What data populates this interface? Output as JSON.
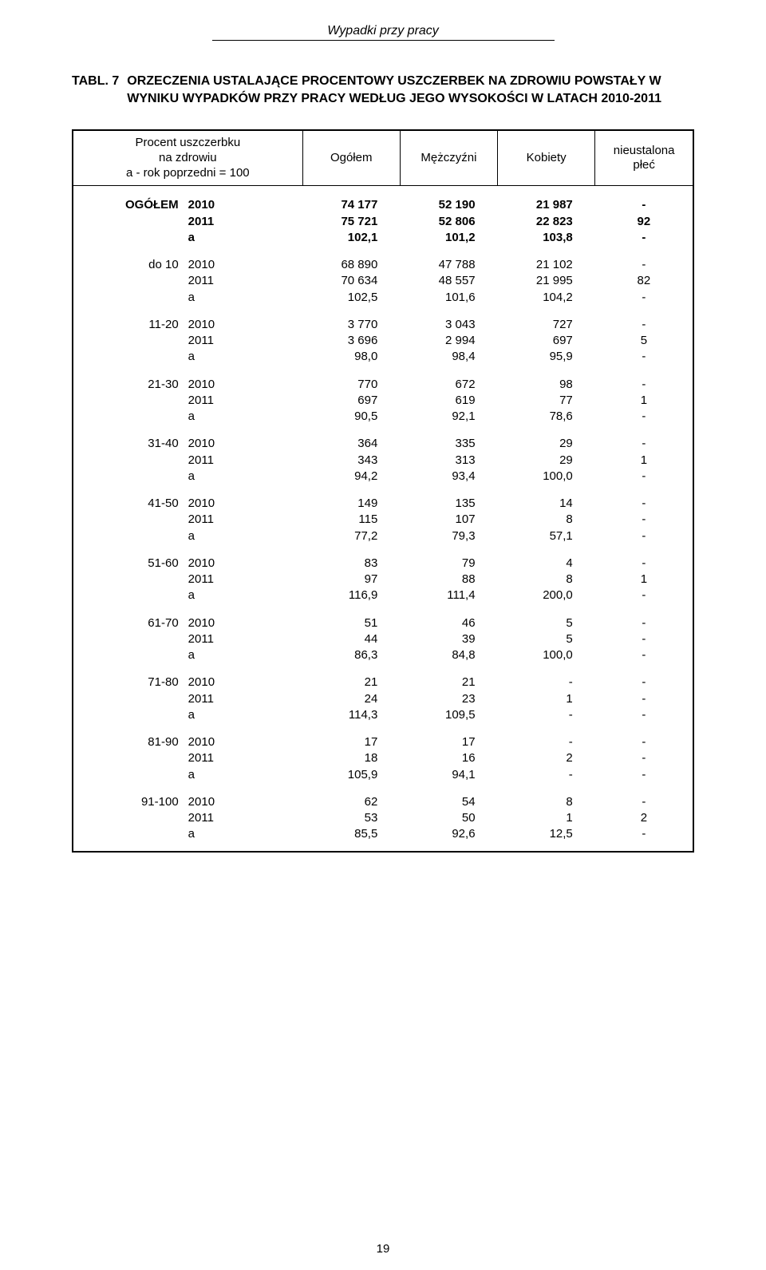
{
  "header_text": "Wypadki przy pracy",
  "title_label": "TABL. 7",
  "title_text": "ORZECZENIA USTALAJĄCE PROCENTOWY USZCZERBEK NA ZDROWIU POWSTAŁY W WYNIKU WYPADKÓW PRZY PRACY WEDŁUG JEGO WYSOKOŚCI W LATACH 2010-2011",
  "columns": {
    "group_line1": "Procent uszczerbku",
    "group_line2": "na zdrowiu",
    "group_line3": "a - rok poprzedni = 100",
    "total": "Ogółem",
    "men": "Mężczyźni",
    "women": "Kobiety",
    "unknown_line1": "nieustalona",
    "unknown_line2": "płeć"
  },
  "groups": [
    {
      "label": "OGÓŁEM",
      "bold": true,
      "rows": [
        {
          "y": "2010",
          "c": [
            "74 177",
            "52 190",
            "21 987",
            "-"
          ]
        },
        {
          "y": "2011",
          "c": [
            "75 721",
            "52 806",
            "22 823",
            "92"
          ]
        },
        {
          "y": "a",
          "c": [
            "102,1",
            "101,2",
            "103,8",
            "-"
          ]
        }
      ]
    },
    {
      "label": "do 10",
      "rows": [
        {
          "y": "2010",
          "c": [
            "68 890",
            "47 788",
            "21 102",
            "-"
          ]
        },
        {
          "y": "2011",
          "c": [
            "70 634",
            "48 557",
            "21 995",
            "82"
          ]
        },
        {
          "y": "a",
          "c": [
            "102,5",
            "101,6",
            "104,2",
            "-"
          ]
        }
      ]
    },
    {
      "label": "11-20",
      "rows": [
        {
          "y": "2010",
          "c": [
            "3 770",
            "3 043",
            "727",
            "-"
          ]
        },
        {
          "y": "2011",
          "c": [
            "3 696",
            "2 994",
            "697",
            "5"
          ]
        },
        {
          "y": "a",
          "c": [
            "98,0",
            "98,4",
            "95,9",
            "-"
          ]
        }
      ]
    },
    {
      "label": "21-30",
      "rows": [
        {
          "y": "2010",
          "c": [
            "770",
            "672",
            "98",
            "-"
          ]
        },
        {
          "y": "2011",
          "c": [
            "697",
            "619",
            "77",
            "1"
          ]
        },
        {
          "y": "a",
          "c": [
            "90,5",
            "92,1",
            "78,6",
            "-"
          ]
        }
      ]
    },
    {
      "label": "31-40",
      "rows": [
        {
          "y": "2010",
          "c": [
            "364",
            "335",
            "29",
            "-"
          ]
        },
        {
          "y": "2011",
          "c": [
            "343",
            "313",
            "29",
            "1"
          ]
        },
        {
          "y": "a",
          "c": [
            "94,2",
            "93,4",
            "100,0",
            "-"
          ]
        }
      ]
    },
    {
      "label": "41-50",
      "rows": [
        {
          "y": "2010",
          "c": [
            "149",
            "135",
            "14",
            "-"
          ]
        },
        {
          "y": "2011",
          "c": [
            "115",
            "107",
            "8",
            "-"
          ]
        },
        {
          "y": "a",
          "c": [
            "77,2",
            "79,3",
            "57,1",
            "-"
          ]
        }
      ]
    },
    {
      "label": "51-60",
      "rows": [
        {
          "y": "2010",
          "c": [
            "83",
            "79",
            "4",
            "-"
          ]
        },
        {
          "y": "2011",
          "c": [
            "97",
            "88",
            "8",
            "1"
          ]
        },
        {
          "y": "a",
          "c": [
            "116,9",
            "111,4",
            "200,0",
            "-"
          ]
        }
      ]
    },
    {
      "label": "61-70",
      "rows": [
        {
          "y": "2010",
          "c": [
            "51",
            "46",
            "5",
            "-"
          ]
        },
        {
          "y": "2011",
          "c": [
            "44",
            "39",
            "5",
            "-"
          ]
        },
        {
          "y": "a",
          "c": [
            "86,3",
            "84,8",
            "100,0",
            "-"
          ]
        }
      ]
    },
    {
      "label": "71-80",
      "rows": [
        {
          "y": "2010",
          "c": [
            "21",
            "21",
            "-",
            "-"
          ]
        },
        {
          "y": "2011",
          "c": [
            "24",
            "23",
            "1",
            "-"
          ]
        },
        {
          "y": "a",
          "c": [
            "114,3",
            "109,5",
            "-",
            "-"
          ]
        }
      ]
    },
    {
      "label": "81-90",
      "rows": [
        {
          "y": "2010",
          "c": [
            "17",
            "17",
            "-",
            "-"
          ]
        },
        {
          "y": "2011",
          "c": [
            "18",
            "16",
            "2",
            "-"
          ]
        },
        {
          "y": "a",
          "c": [
            "105,9",
            "94,1",
            "-",
            "-"
          ]
        }
      ]
    },
    {
      "label": "91-100",
      "rows": [
        {
          "y": "2010",
          "c": [
            "62",
            "54",
            "8",
            "-"
          ]
        },
        {
          "y": "2011",
          "c": [
            "53",
            "50",
            "1",
            "2"
          ]
        },
        {
          "y": "a",
          "c": [
            "85,5",
            "92,6",
            "12,5",
            "-"
          ]
        }
      ]
    }
  ],
  "page_number": "19"
}
